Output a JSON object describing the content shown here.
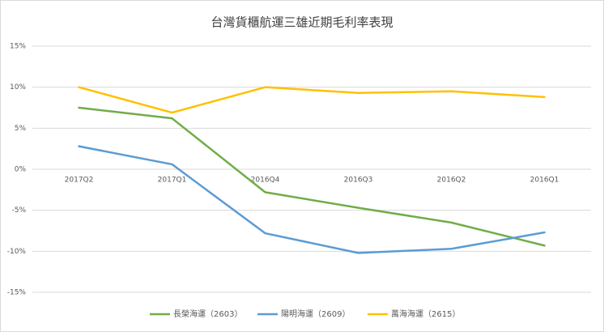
{
  "chart_data": {
    "type": "line",
    "title": "台灣貨櫃航運三雄近期毛利率表現",
    "categories": [
      "2017Q2",
      "2017Q1",
      "2016Q4",
      "2016Q3",
      "2016Q2",
      "2016Q1"
    ],
    "series": [
      {
        "name": "長榮海運（2603）",
        "color": "#70ad47",
        "values": [
          7.5,
          6.2,
          -2.8,
          -4.7,
          -6.5,
          -9.3
        ]
      },
      {
        "name": "陽明海運（2609）",
        "color": "#5b9bd5",
        "values": [
          2.8,
          0.6,
          -7.8,
          -10.2,
          -9.7,
          -7.7
        ]
      },
      {
        "name": "萬海海運（2615）",
        "color": "#ffc000",
        "values": [
          10,
          6.9,
          10,
          9.3,
          9.5,
          8.8
        ]
      }
    ],
    "ylim": [
      -15,
      15
    ],
    "yticks": [
      {
        "value": -15,
        "label": "-15%"
      },
      {
        "value": -10,
        "label": "-10%"
      },
      {
        "value": -5,
        "label": "-5%"
      },
      {
        "value": 0,
        "label": "0%"
      },
      {
        "value": 5,
        "label": "5%"
      },
      {
        "value": 10,
        "label": "10%"
      },
      {
        "value": 15,
        "label": "15%"
      }
    ],
    "grid": true,
    "legend": "bottom"
  }
}
